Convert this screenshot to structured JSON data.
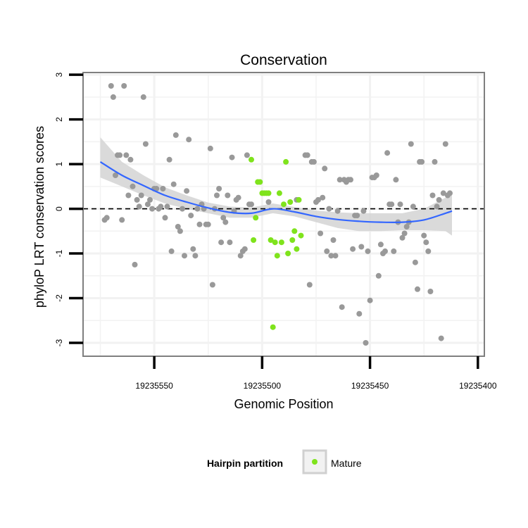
{
  "chart_data": {
    "type": "scatter",
    "title": "Conservation",
    "xlabel": "Genomic Position",
    "ylabel": "phyloP LRT conservation scores",
    "x_reversed": true,
    "xlim": [
      19235583,
      19235397
    ],
    "ylim": [
      -3.3,
      3.05
    ],
    "x_ticks": [
      19235550,
      19235500,
      19235450,
      19235400
    ],
    "y_ticks": [
      3,
      2,
      1,
      0,
      -1,
      -2,
      -3
    ],
    "reference_line": 0,
    "grid": true,
    "colors": {
      "other": "#999999",
      "mature": "#7fe31c",
      "smooth": "#3366ff",
      "ribbon": "#d3d3d3",
      "panel_border": "#7f7f7f",
      "grid": "#f2f2f2"
    },
    "legend": {
      "title": "Hairpin partition",
      "position": "bottom",
      "entries": [
        {
          "label": "Mature",
          "color": "#7fe31c"
        }
      ]
    },
    "series": [
      {
        "values": [
          [
            19235573,
            -0.25
          ],
          [
            19235572,
            -0.2
          ],
          [
            19235570,
            2.75
          ],
          [
            19235569,
            2.5
          ],
          [
            19235568,
            0.75
          ],
          [
            19235567,
            1.2
          ],
          [
            19235566,
            1.2
          ],
          [
            19235565,
            -0.25
          ],
          [
            19235564,
            2.75
          ],
          [
            19235563,
            1.2
          ],
          [
            19235562,
            0.3
          ],
          [
            19235561,
            1.1
          ],
          [
            19235560,
            0.5
          ],
          [
            19235559,
            -1.25
          ],
          [
            19235558,
            0.2
          ],
          [
            19235557,
            0.05
          ],
          [
            19235556,
            0.3
          ],
          [
            19235555,
            2.5
          ],
          [
            19235554,
            1.45
          ],
          [
            19235553,
            0.1
          ],
          [
            19235552,
            0.2
          ],
          [
            19235551,
            0.0
          ],
          [
            19235550,
            0.45
          ],
          [
            19235549,
            0.45
          ],
          [
            19235548,
            0.0
          ],
          [
            19235547,
            0.05
          ],
          [
            19235546,
            0.45
          ],
          [
            19235545,
            -0.2
          ],
          [
            19235544,
            0.05
          ],
          [
            19235543,
            1.1
          ],
          [
            19235542,
            -0.95
          ],
          [
            19235541,
            0.55
          ],
          [
            19235540,
            1.65
          ],
          [
            19235539,
            -0.4
          ],
          [
            19235538,
            -0.5
          ],
          [
            19235537,
            0.0
          ],
          [
            19235536,
            -1.05
          ],
          [
            19235535,
            0.4
          ],
          [
            19235534,
            1.55
          ],
          [
            19235533,
            -0.15
          ],
          [
            19235532,
            -0.9
          ],
          [
            19235531,
            -1.05
          ],
          [
            19235530,
            0.0
          ],
          [
            19235529,
            -0.35
          ],
          [
            19235528,
            0.1
          ],
          [
            19235527,
            0.0
          ],
          [
            19235526,
            -0.35
          ],
          [
            19235525,
            -0.35
          ],
          [
            19235524,
            1.35
          ],
          [
            19235523,
            -1.7
          ],
          [
            19235522,
            0.0
          ],
          [
            19235521,
            0.3
          ],
          [
            19235520,
            0.45
          ],
          [
            19235519,
            -0.75
          ],
          [
            19235518,
            -0.2
          ],
          [
            19235517,
            -0.3
          ],
          [
            19235516,
            0.3
          ],
          [
            19235515,
            -0.75
          ],
          [
            19235514,
            1.15
          ],
          [
            19235513,
            -0.05
          ],
          [
            19235512,
            0.2
          ],
          [
            19235511,
            0.25
          ],
          [
            19235510,
            -1.05
          ],
          [
            19235509,
            -0.95
          ],
          [
            19235508,
            -0.9
          ],
          [
            19235507,
            1.2
          ],
          [
            19235506,
            0.1
          ],
          [
            19235505,
            0.1
          ],
          [
            19235497,
            0.15
          ],
          [
            19235484,
            0.2
          ],
          [
            19235480,
            1.2
          ],
          [
            19235479,
            1.2
          ],
          [
            19235478,
            -1.7
          ],
          [
            19235477,
            1.05
          ],
          [
            19235476,
            1.05
          ],
          [
            19235475,
            0.15
          ],
          [
            19235474,
            0.2
          ],
          [
            19235473,
            -0.55
          ],
          [
            19235472,
            0.25
          ],
          [
            19235471,
            0.9
          ],
          [
            19235470,
            -0.95
          ],
          [
            19235469,
            0.0
          ],
          [
            19235468,
            -1.05
          ],
          [
            19235467,
            -0.7
          ],
          [
            19235466,
            -1.05
          ],
          [
            19235465,
            -0.05
          ],
          [
            19235464,
            0.65
          ],
          [
            19235463,
            -2.2
          ],
          [
            19235462,
            0.65
          ],
          [
            19235461,
            0.6
          ],
          [
            19235460,
            0.65
          ],
          [
            19235459,
            0.65
          ],
          [
            19235458,
            -0.9
          ],
          [
            19235457,
            -0.15
          ],
          [
            19235456,
            -0.15
          ],
          [
            19235455,
            -2.35
          ],
          [
            19235454,
            -0.85
          ],
          [
            19235453,
            -0.05
          ],
          [
            19235452,
            -3.0
          ],
          [
            19235451,
            -0.95
          ],
          [
            19235450,
            -2.05
          ],
          [
            19235449,
            0.7
          ],
          [
            19235448,
            0.7
          ],
          [
            19235447,
            0.75
          ],
          [
            19235446,
            -1.5
          ],
          [
            19235445,
            -0.8
          ],
          [
            19235444,
            -1.0
          ],
          [
            19235443,
            -0.95
          ],
          [
            19235442,
            1.25
          ],
          [
            19235441,
            0.1
          ],
          [
            19235440,
            0.1
          ],
          [
            19235439,
            -0.95
          ],
          [
            19235438,
            0.65
          ],
          [
            19235437,
            -0.3
          ],
          [
            19235436,
            0.1
          ],
          [
            19235435,
            -0.65
          ],
          [
            19235434,
            -0.55
          ],
          [
            19235433,
            -0.4
          ],
          [
            19235432,
            -0.3
          ],
          [
            19235431,
            1.45
          ],
          [
            19235430,
            0.05
          ],
          [
            19235429,
            -1.2
          ],
          [
            19235428,
            -1.8
          ],
          [
            19235427,
            1.05
          ],
          [
            19235426,
            1.05
          ],
          [
            19235425,
            -0.6
          ],
          [
            19235424,
            -0.75
          ],
          [
            19235423,
            -0.95
          ],
          [
            19235422,
            -1.85
          ],
          [
            19235421,
            0.3
          ],
          [
            19235420,
            1.05
          ],
          [
            19235419,
            0.05
          ],
          [
            19235418,
            0.2
          ],
          [
            19235417,
            -2.9
          ],
          [
            19235416,
            0.35
          ],
          [
            19235415,
            1.45
          ],
          [
            19235414,
            0.3
          ],
          [
            19235413,
            0.35
          ]
        ]
      },
      {
        "name": "Mature",
        "values": [
          [
            19235505,
            1.1
          ],
          [
            19235504,
            -0.7
          ],
          [
            19235503,
            -0.2
          ],
          [
            19235502,
            0.6
          ],
          [
            19235501,
            0.6
          ],
          [
            19235500,
            0.35
          ],
          [
            19235499,
            0.35
          ],
          [
            19235498,
            0.35
          ],
          [
            19235497,
            0.35
          ],
          [
            19235496,
            -0.7
          ],
          [
            19235495,
            -2.65
          ],
          [
            19235494,
            -0.75
          ],
          [
            19235493,
            -1.05
          ],
          [
            19235492,
            0.35
          ],
          [
            19235491,
            -0.75
          ],
          [
            19235490,
            0.1
          ],
          [
            19235489,
            1.05
          ],
          [
            19235488,
            -1.0
          ],
          [
            19235487,
            0.15
          ],
          [
            19235486,
            -0.7
          ],
          [
            19235485,
            -0.5
          ],
          [
            19235484,
            -0.9
          ],
          [
            19235483,
            0.2
          ],
          [
            19235482,
            -0.6
          ]
        ]
      }
    ],
    "smooth": {
      "x": [
        19235575,
        19235565,
        19235555,
        19235545,
        19235535,
        19235525,
        19235515,
        19235505,
        19235495,
        19235485,
        19235475,
        19235465,
        19235455,
        19235445,
        19235435,
        19235425,
        19235415,
        19235412
      ],
      "y": [
        1.05,
        0.75,
        0.52,
        0.3,
        0.15,
        0.02,
        -0.08,
        -0.1,
        0.0,
        -0.07,
        -0.17,
        -0.24,
        -0.28,
        -0.3,
        -0.3,
        -0.25,
        -0.1,
        -0.05
      ],
      "ribbon_lower": [
        0.7,
        0.5,
        0.3,
        0.12,
        0.0,
        -0.1,
        -0.2,
        -0.2,
        -0.1,
        -0.17,
        -0.3,
        -0.43,
        -0.5,
        -0.5,
        -0.48,
        -0.48,
        -0.5,
        -0.6
      ],
      "ribbon_upper": [
        1.6,
        1.05,
        0.75,
        0.48,
        0.3,
        0.14,
        0.05,
        0.03,
        0.12,
        0.04,
        -0.04,
        -0.08,
        -0.1,
        -0.1,
        -0.1,
        0.0,
        0.25,
        0.3
      ]
    }
  }
}
